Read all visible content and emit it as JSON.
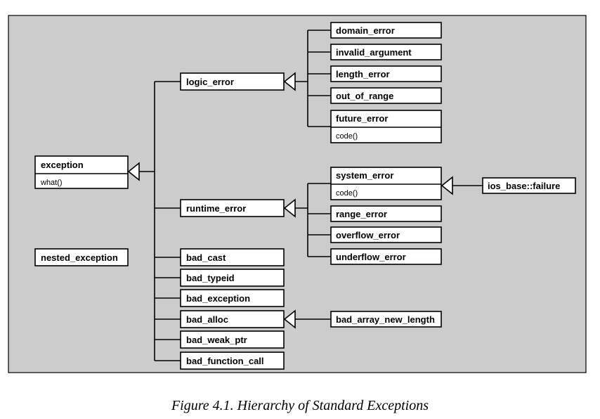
{
  "caption": "Figure 4.1. Hierarchy of Standard Exceptions",
  "colors": {
    "background": "#cccccc",
    "box": "#ffffff",
    "line": "#000000"
  },
  "classes": {
    "exception": {
      "name": "exception",
      "member": "what()"
    },
    "nested_exception": {
      "name": "nested_exception"
    },
    "logic_error": {
      "name": "logic_error"
    },
    "runtime_error": {
      "name": "runtime_error"
    },
    "bad_cast": {
      "name": "bad_cast"
    },
    "bad_typeid": {
      "name": "bad_typeid"
    },
    "bad_exception": {
      "name": "bad_exception"
    },
    "bad_alloc": {
      "name": "bad_alloc"
    },
    "bad_weak_ptr": {
      "name": "bad_weak_ptr"
    },
    "bad_function_call": {
      "name": "bad_function_call"
    },
    "domain_error": {
      "name": "domain_error"
    },
    "invalid_argument": {
      "name": "invalid_argument"
    },
    "length_error": {
      "name": "length_error"
    },
    "out_of_range": {
      "name": "out_of_range"
    },
    "future_error": {
      "name": "future_error",
      "member": "code()"
    },
    "system_error": {
      "name": "system_error",
      "member": "code()"
    },
    "range_error": {
      "name": "range_error"
    },
    "overflow_error": {
      "name": "overflow_error"
    },
    "underflow_error": {
      "name": "underflow_error"
    },
    "ios_base_failure": {
      "name": "ios_base::failure"
    },
    "bad_array_new_length": {
      "name": "bad_array_new_length"
    }
  }
}
